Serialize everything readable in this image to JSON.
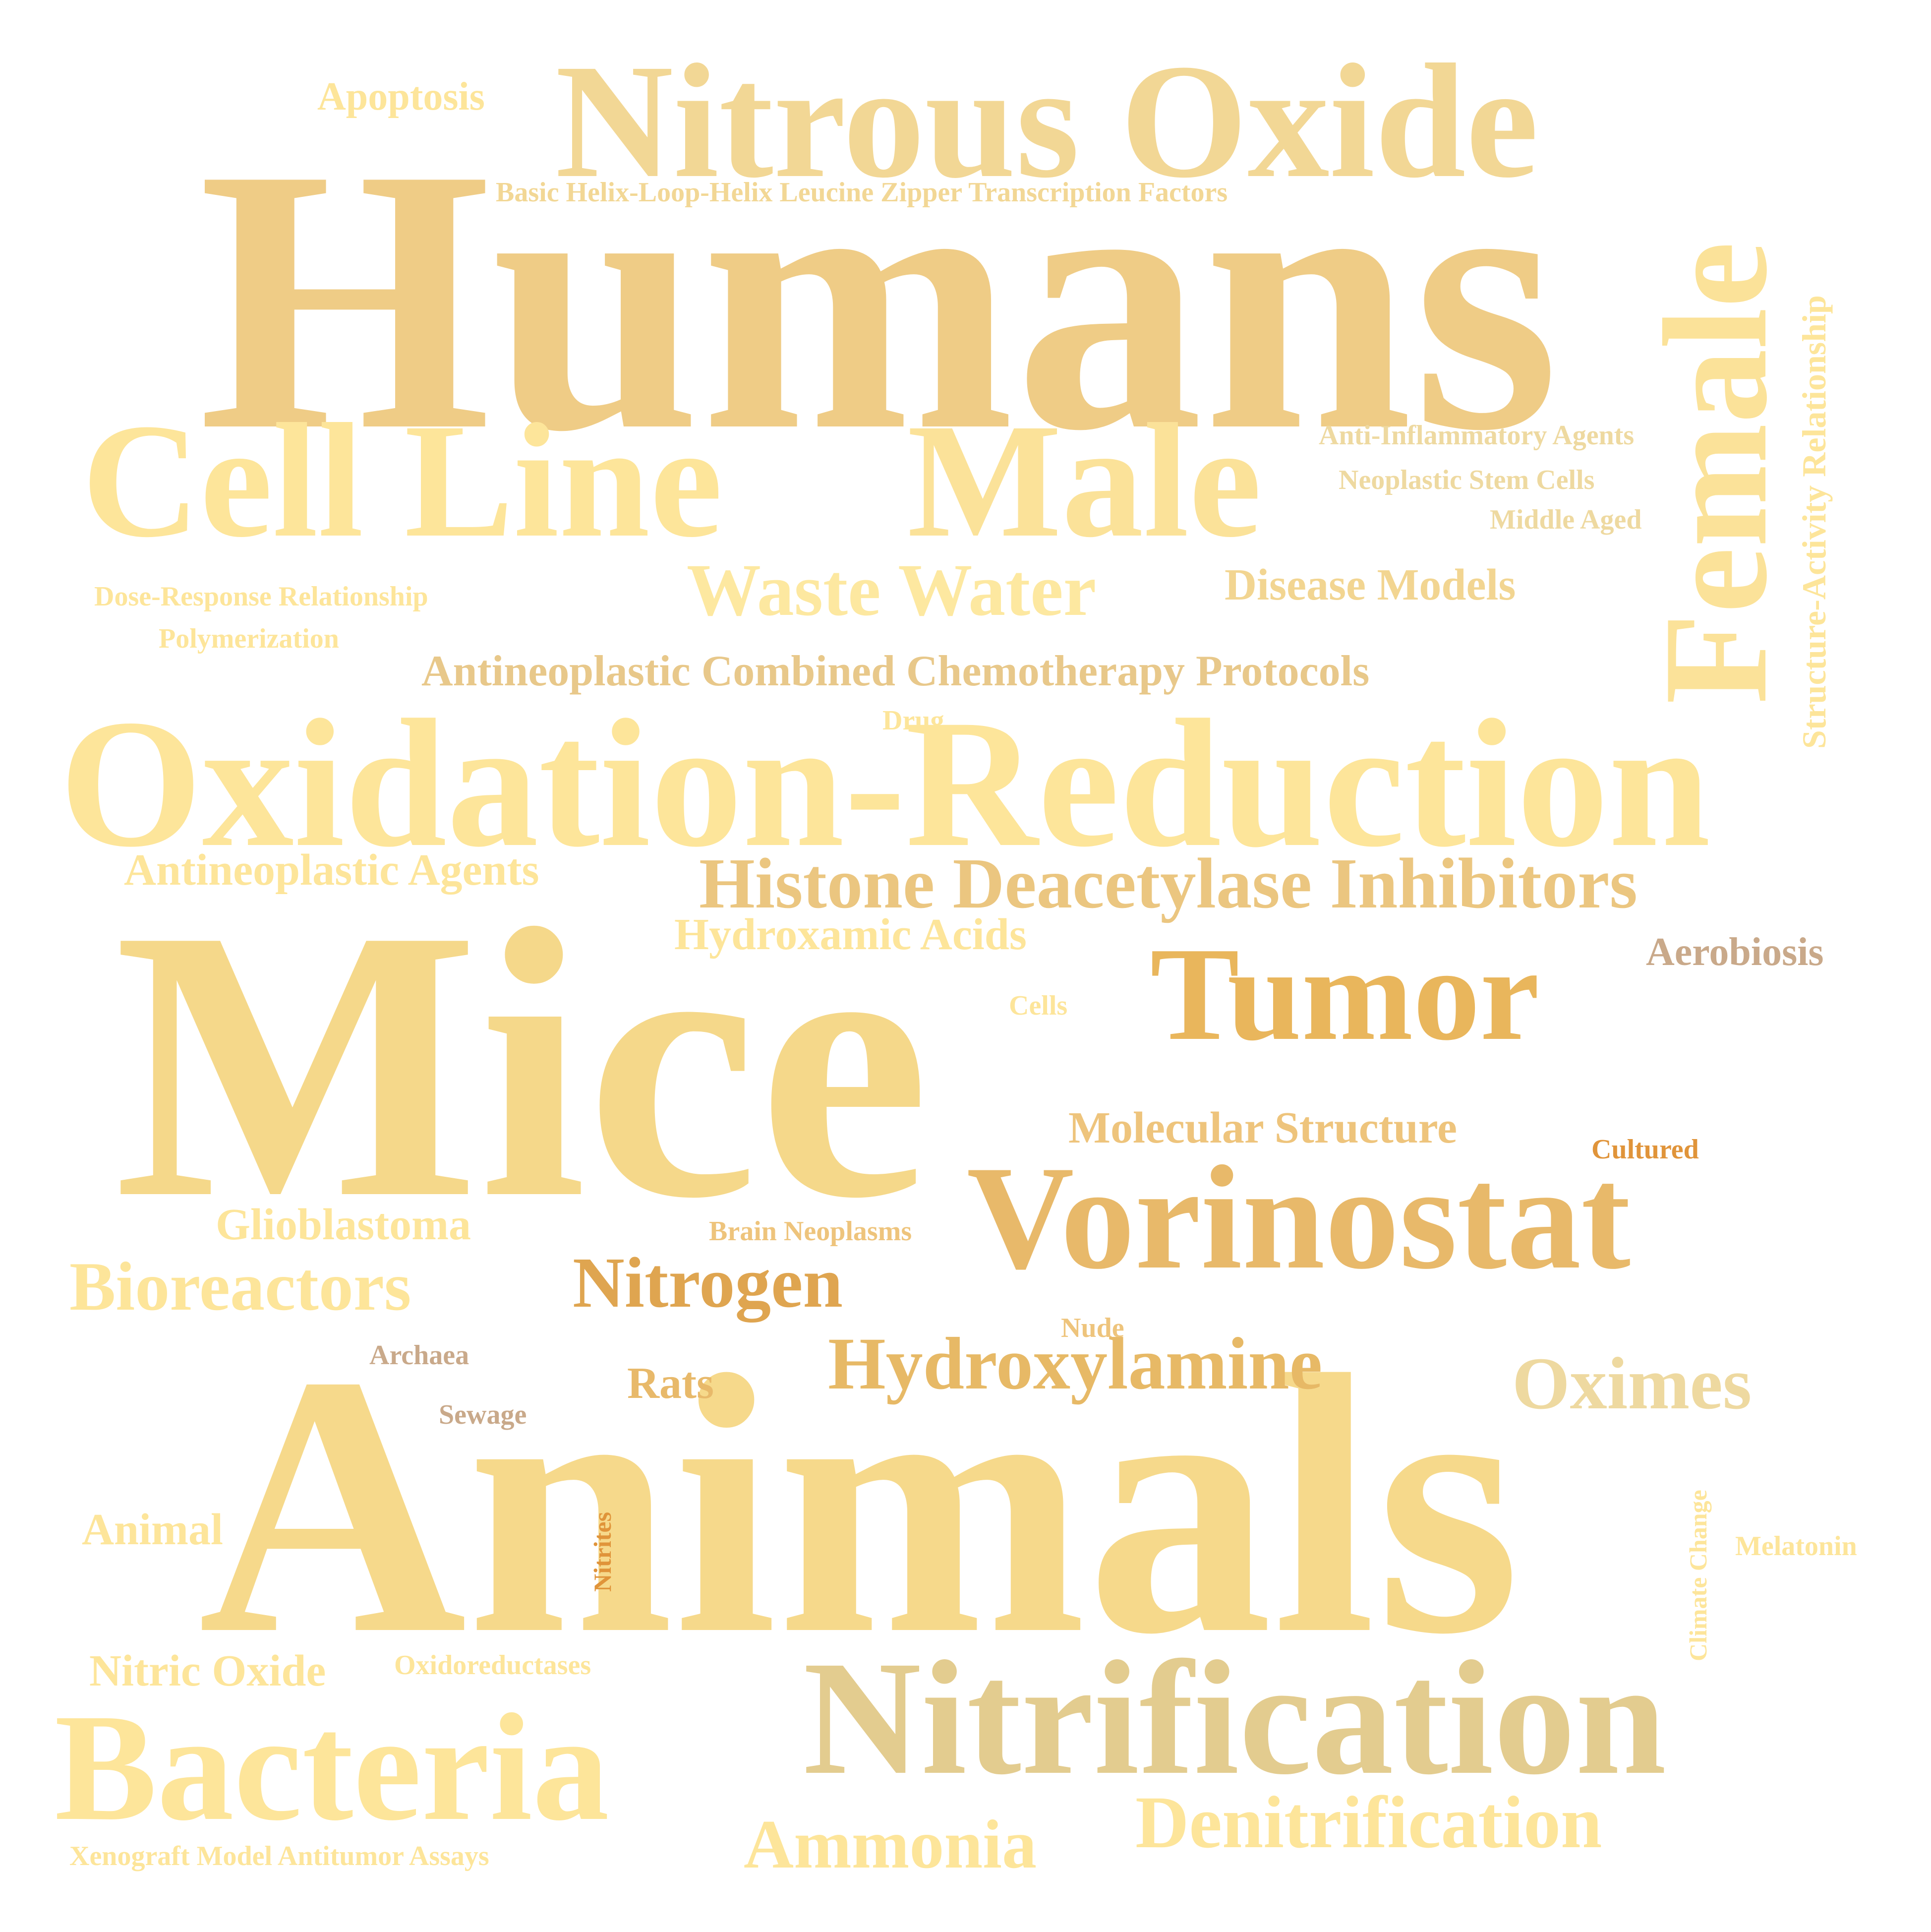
{
  "colors": {
    "background": "#ffffff",
    "pale_yellow": "#fde59a",
    "light_gold": "#f5d88a",
    "gold": "#efcc86",
    "deep_gold": "#e9b65c",
    "amber": "#dfa550",
    "orange": "#e0943a",
    "tan": "#e3cc8f",
    "taupe": "#c9a98a"
  },
  "words": [
    {
      "text": "Humans",
      "color": "#efcc86"
    },
    {
      "text": "Mice",
      "color": "#f5d88a"
    },
    {
      "text": "Animals",
      "color": "#f6d98b"
    },
    {
      "text": "Oxidation-Reduction",
      "color": "#fde59a"
    },
    {
      "text": "Nitrous Oxide",
      "color": "#f2d795"
    },
    {
      "text": "Cell Line",
      "color": "#fde59a"
    },
    {
      "text": "Male",
      "color": "#fbe299"
    },
    {
      "text": "Female",
      "color": "#fbe299"
    },
    {
      "text": "Nitrification",
      "color": "#e3cc8f"
    },
    {
      "text": "Bacteria",
      "color": "#fde59a"
    },
    {
      "text": "Vorinostat",
      "color": "#e8b96a"
    },
    {
      "text": "Tumor",
      "color": "#e9b65c"
    },
    {
      "text": "Histone Deacetylase Inhibitors",
      "color": "#ebc680"
    },
    {
      "text": "Waste Water",
      "color": "#fde8a0"
    },
    {
      "text": "Antineoplastic Combined Chemotherapy Protocols",
      "color": "#e8c88a"
    },
    {
      "text": "Denitrification",
      "color": "#fde59a"
    },
    {
      "text": "Ammonia",
      "color": "#fde59a"
    },
    {
      "text": "Hydroxylamine",
      "color": "#e7b966"
    },
    {
      "text": "Oximes",
      "color": "#eed9a0"
    },
    {
      "text": "Nitrogen",
      "color": "#dfa550"
    },
    {
      "text": "Bioreactors",
      "color": "#fde59a"
    },
    {
      "text": "Molecular Structure",
      "color": "#eec47c"
    },
    {
      "text": "Hydroxamic Acids",
      "color": "#fde59a"
    },
    {
      "text": "Antineoplastic Agents",
      "color": "#fde59a"
    },
    {
      "text": "Disease Models",
      "color": "#f2d591"
    },
    {
      "text": "Glioblastoma",
      "color": "#fde59a"
    },
    {
      "text": "Nitric Oxide",
      "color": "#fde59a"
    },
    {
      "text": "Animal",
      "color": "#fde59a"
    },
    {
      "text": "Rats",
      "color": "#e8b96a"
    },
    {
      "text": "Aerobiosis",
      "color": "#c9a98a"
    },
    {
      "text": "Apoptosis",
      "color": "#fde59a"
    },
    {
      "text": "Structure-Activity Relationship",
      "color": "#fde59a"
    },
    {
      "text": "Basic Helix-Loop-Helix Leucine Zipper Transcription Factors",
      "color": "#f2d795"
    },
    {
      "text": "Anti-Inflammatory Agents",
      "color": "#eed9a0"
    },
    {
      "text": "Neoplastic Stem Cells",
      "color": "#eed9a0"
    },
    {
      "text": "Middle Aged",
      "color": "#eed9a0"
    },
    {
      "text": "Dose-Response Relationship",
      "color": "#fde59a"
    },
    {
      "text": "Polymerization",
      "color": "#fde59a"
    },
    {
      "text": "Drug",
      "color": "#fde59a"
    },
    {
      "text": "Cells",
      "color": "#fde59a"
    },
    {
      "text": "Cultured",
      "color": "#e0943a"
    },
    {
      "text": "Brain Neoplasms",
      "color": "#eec47c"
    },
    {
      "text": "Nude",
      "color": "#eec47c"
    },
    {
      "text": "Archaea",
      "color": "#c9a98a"
    },
    {
      "text": "Sewage",
      "color": "#c9a98a"
    },
    {
      "text": "Nitrites",
      "color": "#e0943a"
    },
    {
      "text": "Climate Change",
      "color": "#fde59a"
    },
    {
      "text": "Melatonin",
      "color": "#fde59a"
    },
    {
      "text": "Oxidoreductases",
      "color": "#fde59a"
    },
    {
      "text": "Xenograft Model Antitumor Assays",
      "color": "#fde59a"
    }
  ]
}
